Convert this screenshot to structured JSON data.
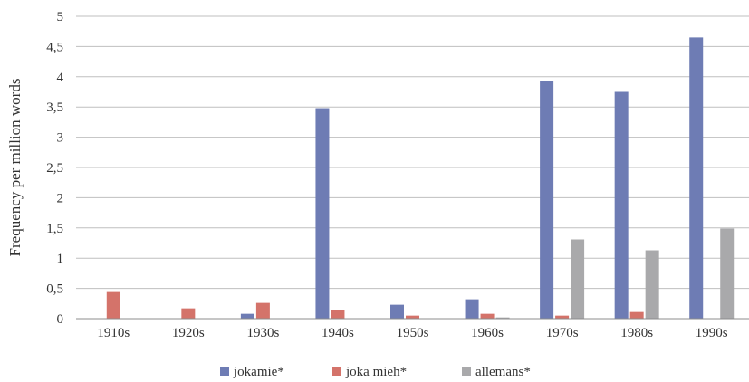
{
  "chart_data": {
    "type": "bar",
    "title": "",
    "xlabel": "",
    "ylabel": "Frequency per million words",
    "ylim": [
      0,
      5
    ],
    "yticks": [
      "0",
      "0,5",
      "1",
      "1,5",
      "2",
      "2,5",
      "3",
      "3,5",
      "4",
      "4,5",
      "5"
    ],
    "grid": true,
    "legend_position": "bottom",
    "categories": [
      "1910s",
      "1920s",
      "1930s",
      "1940s",
      "1950s",
      "1960s",
      "1970s",
      "1980s",
      "1990s"
    ],
    "series": [
      {
        "name": "jokamie*",
        "color": "#6e7cb4",
        "values": [
          0,
          0,
          0.08,
          3.48,
          0.23,
          0.32,
          3.93,
          3.75,
          4.65
        ]
      },
      {
        "name": "joka mieh*",
        "color": "#d4736a",
        "values": [
          0.44,
          0.17,
          0.26,
          0.14,
          0.05,
          0.08,
          0.05,
          0.11,
          0
        ]
      },
      {
        "name": "allemans*",
        "color": "#a9a9ab",
        "values": [
          0,
          0,
          0,
          0,
          0,
          0.02,
          1.31,
          1.13,
          1.49
        ]
      }
    ]
  }
}
